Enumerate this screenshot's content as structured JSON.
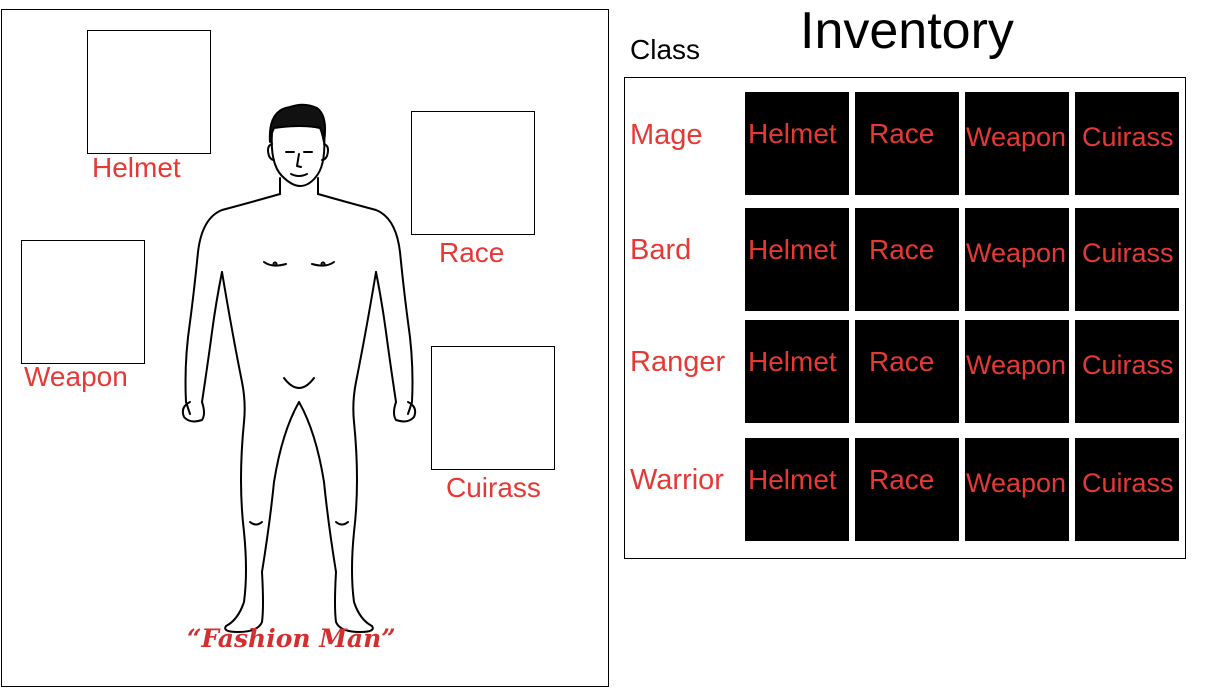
{
  "character": {
    "slots": {
      "helmet": "Helmet",
      "race": "Race",
      "weapon": "Weapon",
      "cuirass": "Cuirass"
    },
    "caption": "“Fashion Man”"
  },
  "inventory": {
    "title": "Inventory",
    "class_heading": "Class",
    "rows": [
      {
        "class": "Mage",
        "items": [
          "Helmet",
          "Race",
          "Weapon",
          "Cuirass"
        ]
      },
      {
        "class": "Bard",
        "items": [
          "Helmet",
          "Race",
          "Weapon",
          "Cuirass"
        ]
      },
      {
        "class": "Ranger",
        "items": [
          "Helmet",
          "Race",
          "Weapon",
          "Cuirass"
        ]
      },
      {
        "class": "Warrior",
        "items": [
          "Helmet",
          "Race",
          "Weapon",
          "Cuirass"
        ]
      }
    ]
  },
  "colors": {
    "label_red": "#e53935",
    "cell_bg": "#000000"
  }
}
